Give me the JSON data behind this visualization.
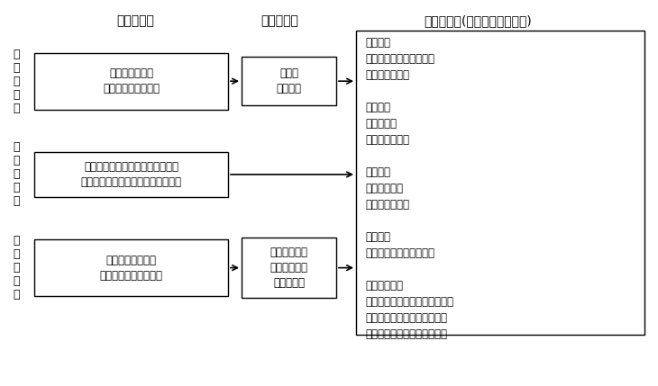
{
  "title_col1": "一次的反応",
  "title_col2": "二次的反応",
  "title_col3": "重篤な反応(ストレス関連疾患)",
  "left_labels": [
    "心\n理\n的\n反\n応",
    "行\n動\n的\n反\n応",
    "身\n体\n的\n反\n応"
  ],
  "box1_texts": [
    "不安／イライラ\n怒り／悲しみ　など",
    "集中力低下／飲酒・喫煙量の増加\n引きこもり／不眠／意欲減退　など",
    "血圧上昇／筋緊張\n心拍数増加／末梢発汗"
  ],
  "box2_texts": [
    "無気力\nうつ気分",
    null,
    "頭痛／めまい\n肩こり／胃痛\n下痢　など"
  ],
  "right_text": "循環器系\n本態性高血圧／心筋梗塞\n狭心症／不整脈\n\n消化器系\n消化性潰瘍\n過敏性腸症候群\n\n呼吸器系\n過呼吸症候群\n気管支炎の悪化\n\n筋骨格系\n筋緊張性頭痛／慢性疼痛\n\n心理・行動系\n不登校／出社拒否／職場不適応\nアルコール依存／引きこもり\n不安障害／うつ病／適応障害",
  "bg_color": "#ffffff",
  "box_color": "#ffffff",
  "box_edge_color": "#000000",
  "text_color": "#000000",
  "arrow_color": "#000000"
}
